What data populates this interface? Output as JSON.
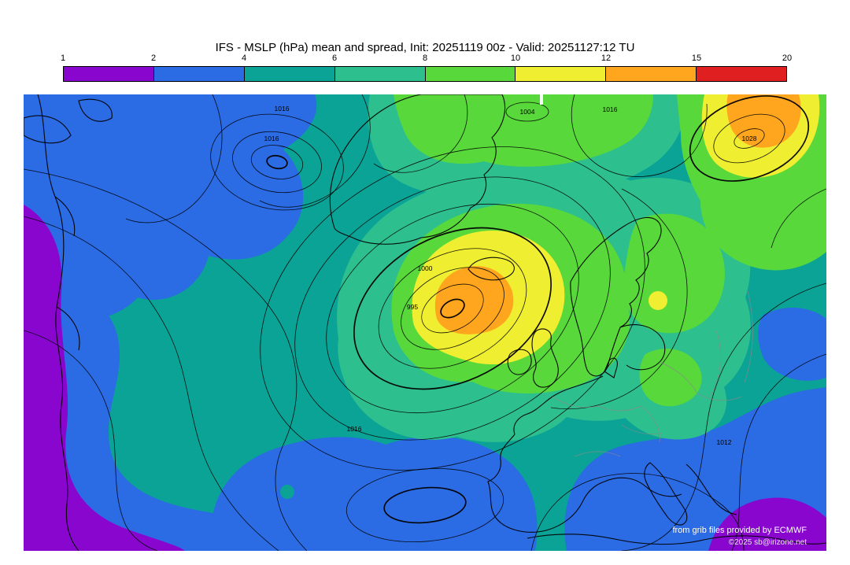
{
  "title": "IFS - MSLP (hPa) mean and spread, Init: 20251119 00z - Valid: 20251127:12 TU",
  "colorbar": {
    "ticks": [
      "1",
      "2",
      "4",
      "6",
      "8",
      "10",
      "12",
      "15",
      "20"
    ],
    "segment_colors": [
      "#8806ce",
      "#2b6be4",
      "#0aa396",
      "#2ebf8f",
      "#58d83a",
      "#f0ee30",
      "#ffa51e",
      "#e02020"
    ]
  },
  "map": {
    "contour_labels": [
      "1016",
      "1016",
      "1004",
      "1016",
      "1028",
      "1000",
      "995",
      "1016",
      "1012"
    ],
    "credits_line1": "from grib files provided by ECMWF",
    "credits_line2": "©2025 sb@irizone.net"
  }
}
